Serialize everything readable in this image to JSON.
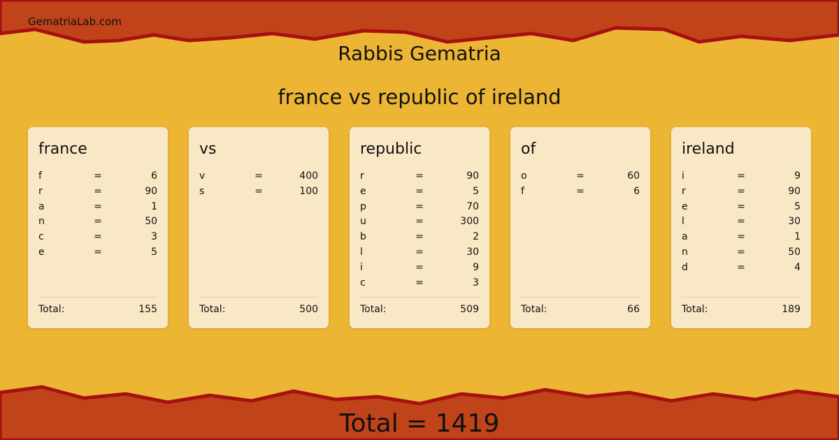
{
  "site_name": "GematriaLab.com",
  "title": "Rabbis Gematria",
  "subtitle": "france vs republic of ireland",
  "colors": {
    "background": "#ecb534",
    "band": "#c0431a",
    "band_edge": "#a81010",
    "card": "#f9e8c6"
  },
  "total_label": "Total:",
  "cards": [
    {
      "word": "france",
      "letters": [
        [
          "f",
          "=",
          "6"
        ],
        [
          "r",
          "=",
          "90"
        ],
        [
          "a",
          "=",
          "1"
        ],
        [
          "n",
          "=",
          "50"
        ],
        [
          "c",
          "=",
          "3"
        ],
        [
          "e",
          "=",
          "5"
        ]
      ],
      "total": "155"
    },
    {
      "word": "vs",
      "letters": [
        [
          "v",
          "=",
          "400"
        ],
        [
          "s",
          "=",
          "100"
        ]
      ],
      "total": "500"
    },
    {
      "word": "republic",
      "letters": [
        [
          "r",
          "=",
          "90"
        ],
        [
          "e",
          "=",
          "5"
        ],
        [
          "p",
          "=",
          "70"
        ],
        [
          "u",
          "=",
          "300"
        ],
        [
          "b",
          "=",
          "2"
        ],
        [
          "l",
          "=",
          "30"
        ],
        [
          "i",
          "=",
          "9"
        ],
        [
          "c",
          "=",
          "3"
        ]
      ],
      "total": "509"
    },
    {
      "word": "of",
      "letters": [
        [
          "o",
          "=",
          "60"
        ],
        [
          "f",
          "=",
          "6"
        ]
      ],
      "total": "66"
    },
    {
      "word": "ireland",
      "letters": [
        [
          "i",
          "=",
          "9"
        ],
        [
          "r",
          "=",
          "90"
        ],
        [
          "e",
          "=",
          "5"
        ],
        [
          "l",
          "=",
          "30"
        ],
        [
          "a",
          "=",
          "1"
        ],
        [
          "n",
          "=",
          "50"
        ],
        [
          "d",
          "=",
          "4"
        ]
      ],
      "total": "189"
    }
  ],
  "grand_total": "Total = 1419"
}
